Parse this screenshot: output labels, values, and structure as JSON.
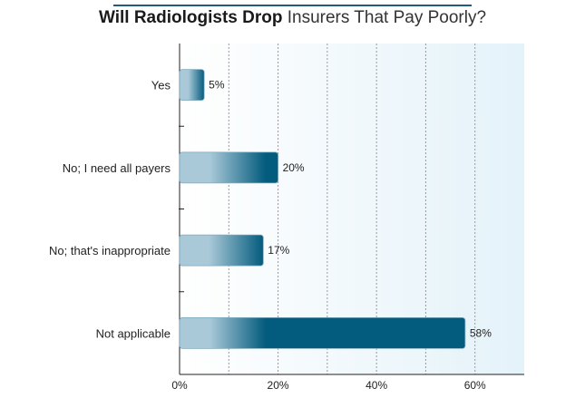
{
  "title_bold": "Will Radiologists Drop",
  "title_rest": "Insurers That Pay Poorly?",
  "colors": {
    "bar_dark": "#035b7d",
    "bar_light": "#a9c9d8",
    "plot_bg_left": "#ffffff",
    "plot_bg_right": "#e4f2f9",
    "title_rule": "#1f5c7c"
  },
  "chart_data": {
    "type": "bar",
    "orientation": "horizontal",
    "title": "Will Radiologists Drop Insurers That Pay Poorly?",
    "categories": [
      "Yes",
      "No; I need all payers",
      "No; that's inappropriate",
      "Not applicable"
    ],
    "values": [
      5,
      20,
      17,
      58
    ],
    "value_labels": [
      "5%",
      "20%",
      "17%",
      "58%"
    ],
    "xlim": [
      0,
      70
    ],
    "xticks": [
      0,
      20,
      40,
      60
    ],
    "xtick_labels": [
      "0%",
      "20%",
      "40%",
      "60%"
    ],
    "minor_gridlines": [
      10,
      30,
      50
    ],
    "grid": true
  }
}
